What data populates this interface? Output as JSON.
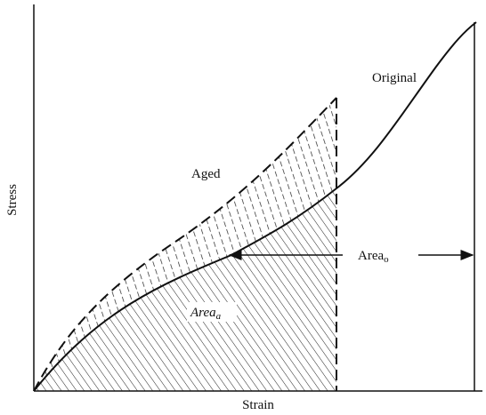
{
  "axes": {
    "y_label": "Stress",
    "x_label": "Strain"
  },
  "curves": {
    "original": "Original",
    "aged": "Aged"
  },
  "areas": {
    "original": {
      "text": "Area",
      "sub": "o"
    },
    "aged": {
      "text": "Area",
      "sub": "a"
    }
  }
}
